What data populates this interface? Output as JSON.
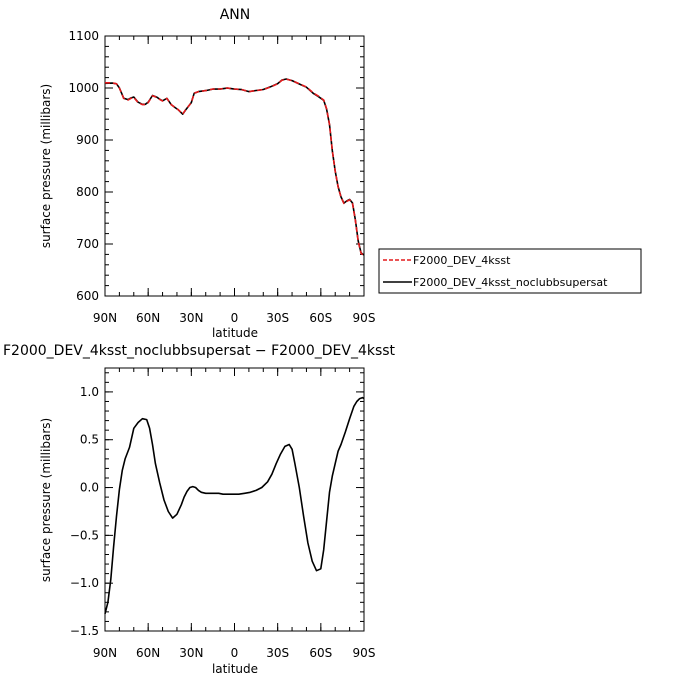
{
  "chart_data": [
    {
      "type": "line",
      "title": "ANN",
      "xlabel": "latitude",
      "ylabel": "surface pressure (millibars)",
      "xlim": [
        90,
        -90
      ],
      "ylim": [
        600,
        1100
      ],
      "x_ticks": [
        90,
        60,
        30,
        0,
        -30,
        -60,
        -90
      ],
      "x_tick_labels": [
        "90N",
        "60N",
        "30N",
        "0",
        "30S",
        "60S",
        "90S"
      ],
      "y_ticks": [
        600,
        700,
        800,
        900,
        1000,
        1100
      ],
      "y_tick_labels": [
        "600",
        "700",
        "800",
        "900",
        "1000",
        "1100"
      ],
      "legend_position": "outside-right",
      "series": [
        {
          "name": "F2000_DEV_4ksst",
          "color": "#e41a1c",
          "dash": "dashed",
          "x": [
            90,
            85,
            82,
            80,
            77,
            74,
            72,
            70,
            67,
            64,
            62,
            60,
            57,
            54,
            52,
            50,
            47,
            44,
            41,
            39,
            36,
            34,
            32,
            30,
            28,
            25,
            20,
            15,
            10,
            5,
            0,
            -5,
            -10,
            -15,
            -20,
            -25,
            -30,
            -33,
            -36,
            -40,
            -45,
            -50,
            -55,
            -58,
            -62,
            -64,
            -66,
            -68,
            -70,
            -72,
            -74,
            -76,
            -78,
            -80,
            -82,
            -84,
            -86,
            -88,
            -90
          ],
          "y": [
            1010,
            1010,
            1008,
            1000,
            980,
            977,
            980,
            982,
            972,
            968,
            968,
            972,
            985,
            982,
            978,
            975,
            980,
            968,
            962,
            958,
            950,
            958,
            965,
            972,
            990,
            993,
            995,
            998,
            998,
            1000,
            998,
            997,
            993,
            995,
            997,
            1002,
            1008,
            1015,
            1017,
            1014,
            1008,
            1002,
            990,
            985,
            977,
            960,
            930,
            880,
            840,
            810,
            790,
            778,
            782,
            785,
            778,
            745,
            705,
            682,
            678
          ]
        },
        {
          "name": "F2000_DEV_4ksst_noclubbsupersat",
          "color": "#000000",
          "dash": "solid",
          "x": [
            90,
            85,
            82,
            80,
            77,
            74,
            72,
            70,
            67,
            64,
            62,
            60,
            57,
            54,
            52,
            50,
            47,
            44,
            41,
            39,
            36,
            34,
            32,
            30,
            28,
            25,
            20,
            15,
            10,
            5,
            0,
            -5,
            -10,
            -15,
            -20,
            -25,
            -30,
            -33,
            -36,
            -40,
            -45,
            -50,
            -55,
            -58,
            -62,
            -64,
            -66,
            -68,
            -70,
            -72,
            -74,
            -76,
            -78,
            -80,
            -82,
            -84,
            -86,
            -88,
            -90
          ],
          "y": [
            1009,
            1009.5,
            1008,
            1000.2,
            980.3,
            977.6,
            980.7,
            982.6,
            972.7,
            968.7,
            968.7,
            972.7,
            985.6,
            982.5,
            978.4,
            975.3,
            980.2,
            968.0,
            961.8,
            957.8,
            949.7,
            957.7,
            964.8,
            972.0,
            990.0,
            993.0,
            995.0,
            997.9,
            997.9,
            999.9,
            997.9,
            996.9,
            993.0,
            995.1,
            997.2,
            1002.3,
            1008.4,
            1015.4,
            1017.4,
            1014.2,
            1007.6,
            1001.5,
            989.3,
            984.1,
            976.4,
            959.5,
            929.7,
            879.9,
            840.1,
            810.3,
            790.5,
            778.6,
            782.7,
            785.8,
            778.9,
            745.9,
            705.9,
            682.9,
            678.9
          ]
        }
      ]
    },
    {
      "type": "line",
      "title": "F2000_DEV_4ksst_noclubbsupersat − F2000_DEV_4ksst",
      "xlabel": "latitude",
      "ylabel": "surface pressure (millibars)",
      "xlim": [
        90,
        -90
      ],
      "ylim": [
        -1.5,
        1.0
      ],
      "y_display_max": 1.25,
      "x_ticks": [
        90,
        60,
        30,
        0,
        -30,
        -60,
        -90
      ],
      "x_tick_labels": [
        "90N",
        "60N",
        "30N",
        "0",
        "30S",
        "60S",
        "90S"
      ],
      "y_ticks": [
        -1.5,
        -1.0,
        -0.5,
        0.0,
        0.5,
        1.0
      ],
      "y_tick_labels": [
        "−1.5",
        "−1.0",
        "−0.5",
        "0.0",
        "0.5",
        "1.0"
      ],
      "series": [
        {
          "color": "#000000",
          "dash": "solid",
          "x": [
            90,
            88,
            86,
            84,
            82,
            80,
            78,
            76,
            73,
            70,
            67,
            64,
            61,
            59,
            57,
            55,
            52,
            49,
            46,
            43,
            40,
            37,
            35,
            33,
            31,
            29,
            27,
            25,
            23,
            20,
            17,
            14,
            11,
            8,
            5,
            2,
            0,
            -3,
            -7,
            -11,
            -15,
            -19,
            -23,
            -26,
            -29,
            -32,
            -35,
            -38,
            -40,
            -42,
            -45,
            -48,
            -51,
            -54,
            -57,
            -60,
            -62,
            -64,
            -66,
            -68,
            -70,
            -72,
            -74,
            -77,
            -80,
            -83,
            -85,
            -87,
            -89,
            -90
          ],
          "y": [
            -1.32,
            -1.2,
            -0.96,
            -0.62,
            -0.3,
            -0.02,
            0.18,
            0.3,
            0.42,
            0.62,
            0.68,
            0.72,
            0.71,
            0.62,
            0.45,
            0.25,
            0.05,
            -0.13,
            -0.25,
            -0.32,
            -0.28,
            -0.18,
            -0.1,
            -0.04,
            0.0,
            0.01,
            0.0,
            -0.03,
            -0.05,
            -0.06,
            -0.06,
            -0.06,
            -0.06,
            -0.07,
            -0.07,
            -0.07,
            -0.07,
            -0.07,
            -0.06,
            -0.05,
            -0.03,
            0.0,
            0.06,
            0.14,
            0.25,
            0.35,
            0.43,
            0.45,
            0.4,
            0.25,
            0.0,
            -0.3,
            -0.58,
            -0.77,
            -0.87,
            -0.85,
            -0.65,
            -0.35,
            -0.05,
            0.12,
            0.25,
            0.38,
            0.45,
            0.58,
            0.72,
            0.85,
            0.9,
            0.93,
            0.94,
            0.93
          ]
        }
      ]
    }
  ]
}
